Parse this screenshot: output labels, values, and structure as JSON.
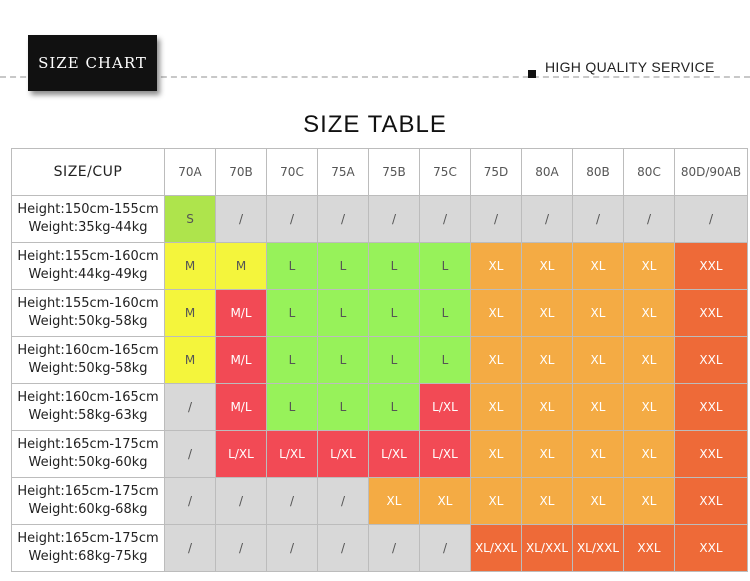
{
  "header": {
    "badge_label": "SIZE CHART",
    "service_label": "HIGH QUALITY SERVICE"
  },
  "table": {
    "title": "SIZE TABLE",
    "corner_label": "SIZE/CUP",
    "columns": [
      "70A",
      "70B",
      "70C",
      "75A",
      "75B",
      "75C",
      "75D",
      "80A",
      "80B",
      "80C",
      "80D/90AB"
    ],
    "rows": [
      {
        "height": "Height:150cm-155cm",
        "weight": "Weight:35kg-44kg",
        "cells": [
          [
            "S",
            "yellow-green"
          ],
          [
            "/",
            "gray"
          ],
          [
            "/",
            "gray"
          ],
          [
            "/",
            "gray"
          ],
          [
            "/",
            "gray"
          ],
          [
            "/",
            "gray"
          ],
          [
            "/",
            "gray"
          ],
          [
            "/",
            "gray"
          ],
          [
            "/",
            "gray"
          ],
          [
            "/",
            "gray"
          ],
          [
            "/",
            "gray"
          ]
        ]
      },
      {
        "height": "Height:155cm-160cm",
        "weight": "Weight:44kg-49kg",
        "cells": [
          [
            "M",
            "yellow"
          ],
          [
            "M",
            "yellow"
          ],
          [
            "L",
            "green"
          ],
          [
            "L",
            "green"
          ],
          [
            "L",
            "green"
          ],
          [
            "L",
            "green"
          ],
          [
            "XL",
            "orange"
          ],
          [
            "XL",
            "orange"
          ],
          [
            "XL",
            "orange"
          ],
          [
            "XL",
            "orange"
          ],
          [
            "XXL",
            "deep"
          ]
        ]
      },
      {
        "height": "Height:155cm-160cm",
        "weight": "Weight:50kg-58kg",
        "cells": [
          [
            "M",
            "yellow"
          ],
          [
            "M/L",
            "red"
          ],
          [
            "L",
            "green"
          ],
          [
            "L",
            "green"
          ],
          [
            "L",
            "green"
          ],
          [
            "L",
            "green"
          ],
          [
            "XL",
            "orange"
          ],
          [
            "XL",
            "orange"
          ],
          [
            "XL",
            "orange"
          ],
          [
            "XL",
            "orange"
          ],
          [
            "XXL",
            "deep"
          ]
        ]
      },
      {
        "height": "Height:160cm-165cm",
        "weight": "Weight:50kg-58kg",
        "cells": [
          [
            "M",
            "yellow"
          ],
          [
            "M/L",
            "red"
          ],
          [
            "L",
            "green"
          ],
          [
            "L",
            "green"
          ],
          [
            "L",
            "green"
          ],
          [
            "L",
            "green"
          ],
          [
            "XL",
            "orange"
          ],
          [
            "XL",
            "orange"
          ],
          [
            "XL",
            "orange"
          ],
          [
            "XL",
            "orange"
          ],
          [
            "XXL",
            "deep"
          ]
        ]
      },
      {
        "height": "Height:160cm-165cm",
        "weight": "Weight:58kg-63kg",
        "cells": [
          [
            "/",
            "gray"
          ],
          [
            "M/L",
            "red"
          ],
          [
            "L",
            "green"
          ],
          [
            "L",
            "green"
          ],
          [
            "L",
            "green"
          ],
          [
            "L/XL",
            "red"
          ],
          [
            "XL",
            "orange"
          ],
          [
            "XL",
            "orange"
          ],
          [
            "XL",
            "orange"
          ],
          [
            "XL",
            "orange"
          ],
          [
            "XXL",
            "deep"
          ]
        ]
      },
      {
        "height": "Height:165cm-175cm",
        "weight": "Weight:50kg-60kg",
        "cells": [
          [
            "/",
            "gray"
          ],
          [
            "L/XL",
            "red"
          ],
          [
            "L/XL",
            "red"
          ],
          [
            "L/XL",
            "red"
          ],
          [
            "L/XL",
            "red"
          ],
          [
            "L/XL",
            "red"
          ],
          [
            "XL",
            "orange"
          ],
          [
            "XL",
            "orange"
          ],
          [
            "XL",
            "orange"
          ],
          [
            "XL",
            "orange"
          ],
          [
            "XXL",
            "deep"
          ]
        ]
      },
      {
        "height": "Height:165cm-175cm",
        "weight": "Weight:60kg-68kg",
        "cells": [
          [
            "/",
            "gray"
          ],
          [
            "/",
            "gray"
          ],
          [
            "/",
            "gray"
          ],
          [
            "/",
            "gray"
          ],
          [
            "XL",
            "orange"
          ],
          [
            "XL",
            "orange"
          ],
          [
            "XL",
            "orange"
          ],
          [
            "XL",
            "orange"
          ],
          [
            "XL",
            "orange"
          ],
          [
            "XL",
            "orange"
          ],
          [
            "XXL",
            "deep"
          ]
        ]
      },
      {
        "height": "Height:165cm-175cm",
        "weight": "Weight:68kg-75kg",
        "cells": [
          [
            "/",
            "gray"
          ],
          [
            "/",
            "gray"
          ],
          [
            "/",
            "gray"
          ],
          [
            "/",
            "gray"
          ],
          [
            "/",
            "gray"
          ],
          [
            "/",
            "gray"
          ],
          [
            "XL/XXL",
            "deep"
          ],
          [
            "XL/XXL",
            "deep"
          ],
          [
            "XL/XXL",
            "deep"
          ],
          [
            "XXL",
            "deep"
          ],
          [
            "XXL",
            "deep"
          ]
        ]
      }
    ]
  },
  "colors": {
    "gray": "#d8d8d8",
    "yellow": "#f4f53c",
    "yellow-green": "#aee44c",
    "green": "#97f25a",
    "red": "#f24a55",
    "orange": "#f4ab44",
    "deep": "#ee6a38"
  }
}
